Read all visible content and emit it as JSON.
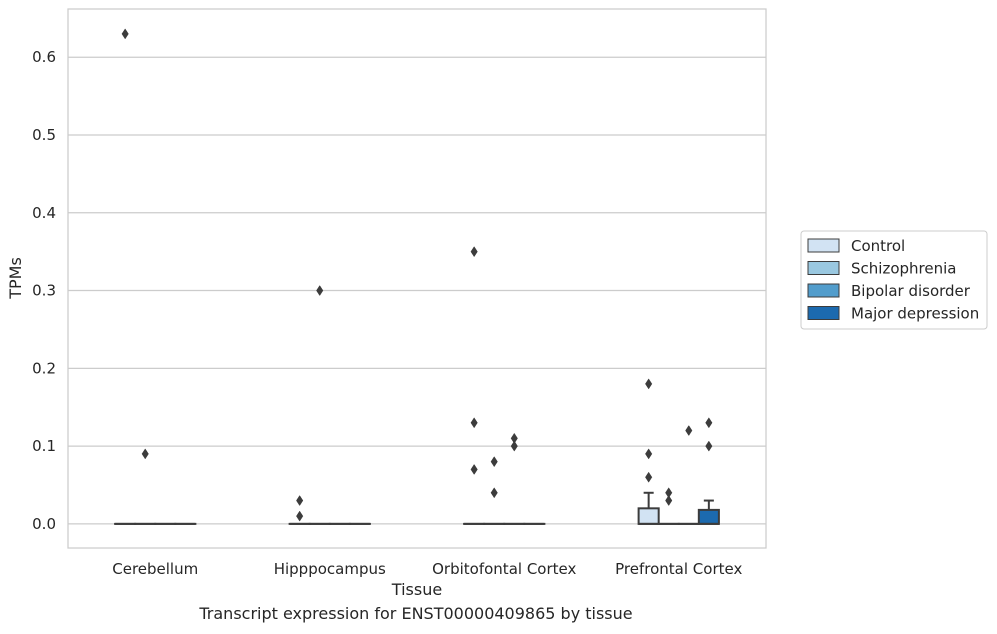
{
  "chart_data": {
    "type": "box",
    "xlabel": "Tissue",
    "ylabel": "TPMs",
    "caption": "Transcript expression for ENST00000409865 by tissue",
    "categories": [
      "Cerebellum",
      "Hipppocampus",
      "Orbitofontal Cortex",
      "Prefrontal Cortex"
    ],
    "ylim": [
      -0.031,
      0.662
    ],
    "yticks": [
      0.0,
      0.1,
      0.2,
      0.3,
      0.4,
      0.5,
      0.6
    ],
    "ytick_labels": [
      "0.0",
      "0.1",
      "0.2",
      "0.3",
      "0.4",
      "0.5",
      "0.6"
    ],
    "grid": true,
    "legend_position": "right",
    "series": [
      {
        "name": "Control",
        "color": "#d2e3f3",
        "boxes": [
          {
            "category": "Cerebellum",
            "q1": 0,
            "median": 0,
            "q3": 0,
            "whisker_low": 0,
            "whisker_high": 0,
            "outliers": [
              0.63
            ]
          },
          {
            "category": "Hipppocampus",
            "q1": 0,
            "median": 0,
            "q3": 0,
            "whisker_low": 0,
            "whisker_high": 0,
            "outliers": [
              0.03,
              0.01
            ]
          },
          {
            "category": "Orbitofontal Cortex",
            "q1": 0,
            "median": 0,
            "q3": 0,
            "whisker_low": 0,
            "whisker_high": 0,
            "outliers": [
              0.35,
              0.13,
              0.07
            ]
          },
          {
            "category": "Prefrontal Cortex",
            "q1": 0,
            "median": 0,
            "q3": 0.02,
            "whisker_low": 0,
            "whisker_high": 0.04,
            "outliers": [
              0.18,
              0.09,
              0.06
            ]
          }
        ]
      },
      {
        "name": "Schizophrenia",
        "color": "#9ac8e0",
        "boxes": [
          {
            "category": "Cerebellum",
            "q1": 0,
            "median": 0,
            "q3": 0,
            "whisker_low": 0,
            "whisker_high": 0,
            "outliers": [
              0.09
            ]
          },
          {
            "category": "Hipppocampus",
            "q1": 0,
            "median": 0,
            "q3": 0,
            "whisker_low": 0,
            "whisker_high": 0,
            "outliers": [
              0.3
            ]
          },
          {
            "category": "Orbitofontal Cortex",
            "q1": 0,
            "median": 0,
            "q3": 0,
            "whisker_low": 0,
            "whisker_high": 0,
            "outliers": [
              0.08,
              0.04
            ]
          },
          {
            "category": "Prefrontal Cortex",
            "q1": 0,
            "median": 0,
            "q3": 0,
            "whisker_low": 0,
            "whisker_high": 0,
            "outliers": [
              0.04,
              0.03
            ]
          }
        ]
      },
      {
        "name": "Bipolar disorder",
        "color": "#529dcc",
        "boxes": [
          {
            "category": "Cerebellum",
            "q1": 0,
            "median": 0,
            "q3": 0,
            "whisker_low": 0,
            "whisker_high": 0,
            "outliers": []
          },
          {
            "category": "Hipppocampus",
            "q1": 0,
            "median": 0,
            "q3": 0,
            "whisker_low": 0,
            "whisker_high": 0,
            "outliers": []
          },
          {
            "category": "Orbitofontal Cortex",
            "q1": 0,
            "median": 0,
            "q3": 0,
            "whisker_low": 0,
            "whisker_high": 0,
            "outliers": [
              0.11,
              0.1
            ]
          },
          {
            "category": "Prefrontal Cortex",
            "q1": 0,
            "median": 0,
            "q3": 0,
            "whisker_low": 0,
            "whisker_high": 0,
            "outliers": [
              0.12
            ]
          }
        ]
      },
      {
        "name": "Major depression",
        "color": "#1c6aaf",
        "boxes": [
          {
            "category": "Cerebellum",
            "q1": 0,
            "median": 0,
            "q3": 0,
            "whisker_low": 0,
            "whisker_high": 0,
            "outliers": []
          },
          {
            "category": "Hipppocampus",
            "q1": 0,
            "median": 0,
            "q3": 0,
            "whisker_low": 0,
            "whisker_high": 0,
            "outliers": []
          },
          {
            "category": "Orbitofontal Cortex",
            "q1": 0,
            "median": 0,
            "q3": 0,
            "whisker_low": 0,
            "whisker_high": 0,
            "outliers": []
          },
          {
            "category": "Prefrontal Cortex",
            "q1": 0,
            "median": 0,
            "q3": 0.018,
            "whisker_low": 0,
            "whisker_high": 0.03,
            "outliers": [
              0.13,
              0.1
            ]
          }
        ]
      }
    ]
  }
}
